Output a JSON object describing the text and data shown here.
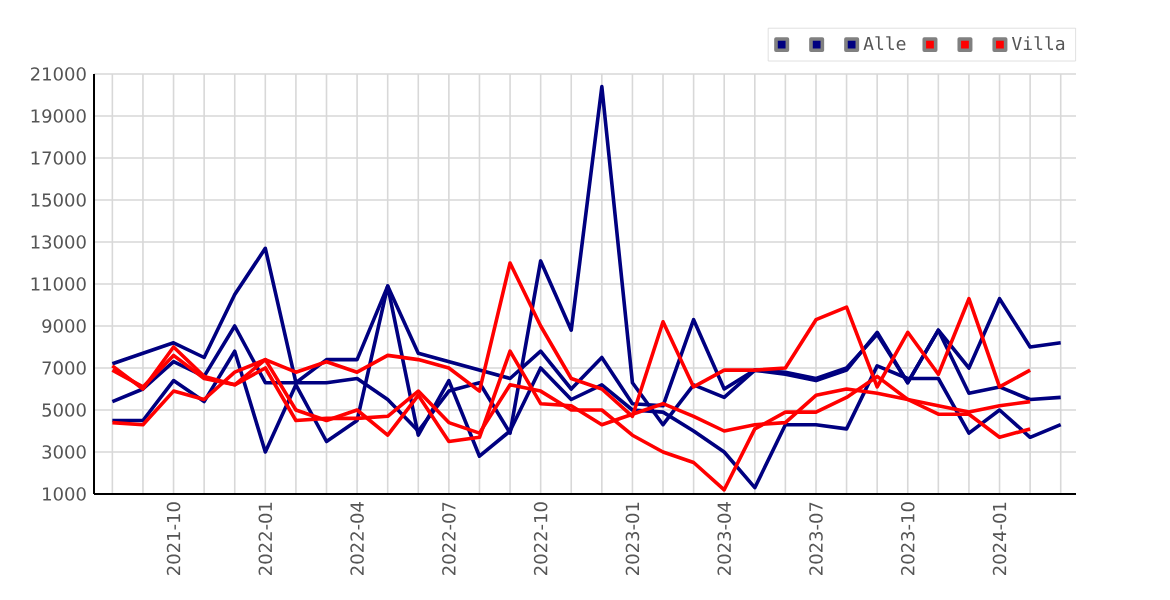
{
  "chart_data": {
    "type": "line",
    "x": [
      "2021-08",
      "2021-09",
      "2021-10",
      "2021-11",
      "2021-12",
      "2022-01",
      "2022-02",
      "2022-03",
      "2022-04",
      "2022-05",
      "2022-06",
      "2022-07",
      "2022-08",
      "2022-09",
      "2022-10",
      "2022-11",
      "2022-12",
      "2023-01",
      "2023-02",
      "2023-03",
      "2023-04",
      "2023-05",
      "2023-06",
      "2023-07",
      "2023-08",
      "2023-09",
      "2023-10",
      "2023-11",
      "2023-12",
      "2024-01",
      "2024-02",
      "2024-03"
    ],
    "series": [
      {
        "color": "#000080",
        "values": [
          7200,
          7700,
          8200,
          7500,
          10500,
          12700,
          6300,
          6300,
          6500,
          5500,
          4000,
          5900,
          6300,
          3900,
          12100,
          8800,
          20400,
          6300,
          4300,
          6200,
          5600,
          6900,
          6800,
          6500,
          7000,
          8600,
          6300,
          8800,
          7000,
          10300,
          8000,
          8200
        ]
      },
      {
        "color": "#000080",
        "values": [
          5400,
          6000,
          7300,
          6600,
          9000,
          6300,
          6300,
          7400,
          7400,
          10900,
          7700,
          7300,
          6900,
          6500,
          7800,
          6000,
          7500,
          5300,
          5200,
          9300,
          6000,
          6900,
          6700,
          6400,
          6900,
          8700,
          6300,
          8800,
          5800,
          6100,
          5500,
          5600
        ]
      },
      {
        "name": "Alle",
        "color": "#000080",
        "values": [
          4500,
          4500,
          6400,
          5400,
          7800,
          3000,
          6200,
          3500,
          4500,
          10900,
          3800,
          6400,
          2800,
          4000,
          7000,
          5500,
          6200,
          5000,
          4900,
          4000,
          3000,
          1300,
          4300,
          4300,
          4100,
          7100,
          6500,
          6500,
          3900,
          5000,
          3700,
          4300
        ]
      },
      {
        "color": "#ff0000",
        "values": [
          7100,
          6000,
          8000,
          6600,
          6200,
          7400,
          6800,
          7300,
          6800,
          7600,
          7400,
          7000,
          5900,
          12000,
          9000,
          6500,
          6000,
          4700,
          9200,
          6100,
          6900,
          6900,
          7000,
          9300,
          9900,
          6100,
          8700,
          6700,
          10300,
          6100,
          6900,
          null
        ]
      },
      {
        "color": "#ff0000",
        "values": [
          4400,
          4300,
          5900,
          5500,
          6800,
          7400,
          5000,
          4500,
          5000,
          3800,
          5700,
          3500,
          3700,
          7800,
          5300,
          5200,
          4300,
          4800,
          5300,
          4700,
          4000,
          4300,
          4400,
          5700,
          6000,
          5800,
          5500,
          5200,
          4900,
          5200,
          5400,
          null
        ]
      },
      {
        "name": "Villa",
        "color": "#ff0000",
        "values": [
          6900,
          6100,
          7600,
          6500,
          6200,
          7000,
          4500,
          4600,
          4600,
          4700,
          5900,
          4400,
          3900,
          6200,
          5900,
          5000,
          5000,
          3800,
          3000,
          2500,
          1200,
          4100,
          4900,
          4900,
          5600,
          6600,
          5500,
          4800,
          4800,
          3700,
          4100,
          null
        ]
      }
    ],
    "xlim": [
      "2021-07-13",
      "2024-03-16"
    ],
    "xticks": [
      {
        "value": "2021-08",
        "label": null
      },
      {
        "value": "2021-09",
        "label": null
      },
      "2021-10",
      {
        "value": "2021-11",
        "label": null
      },
      {
        "value": "2021-12",
        "label": null
      },
      "2022-01",
      {
        "value": "2022-02",
        "label": null
      },
      {
        "value": "2022-03",
        "label": null
      },
      "2022-04",
      {
        "value": "2022-05",
        "label": null
      },
      {
        "value": "2022-06",
        "label": null
      },
      "2022-07",
      {
        "value": "2022-08",
        "label": null
      },
      {
        "value": "2022-09",
        "label": null
      },
      "2022-10",
      {
        "value": "2022-11",
        "label": null
      },
      {
        "value": "2022-12",
        "label": null
      },
      "2023-01",
      {
        "value": "2023-02",
        "label": null
      },
      {
        "value": "2023-03",
        "label": null
      },
      "2023-04",
      {
        "value": "2023-05",
        "label": null
      },
      {
        "value": "2023-06",
        "label": null
      },
      "2023-07",
      {
        "value": "2023-08",
        "label": null
      },
      {
        "value": "2023-09",
        "label": null
      },
      "2023-10",
      {
        "value": "2023-11",
        "label": null
      },
      {
        "value": "2023-12",
        "label": null
      },
      "2024-01",
      {
        "value": "2024-02",
        "label": null
      },
      {
        "value": "2024-03",
        "label": null
      }
    ],
    "ylim": [
      1000,
      21000
    ],
    "yticks": [
      1000,
      3000,
      5000,
      7000,
      9000,
      11000,
      13000,
      15000,
      17000,
      19000,
      21000
    ],
    "grid": true,
    "legend": "top right"
  }
}
